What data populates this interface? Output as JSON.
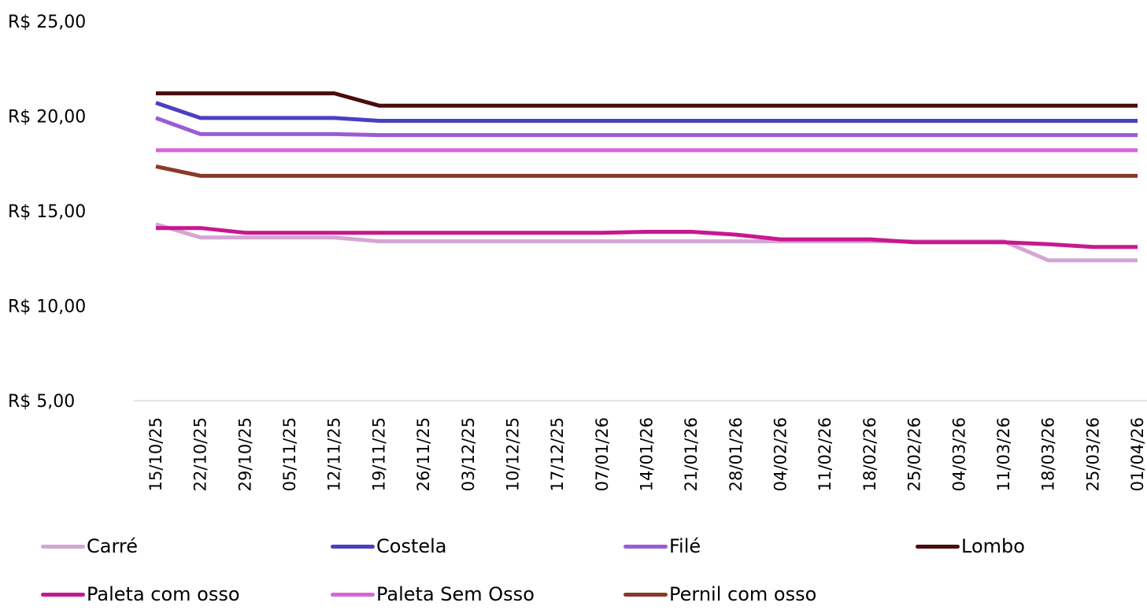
{
  "chart_data": {
    "type": "line",
    "title": "",
    "xlabel": "",
    "ylabel": "",
    "ylim": [
      5,
      25
    ],
    "grid": false,
    "legend_position": "bottom",
    "y_tick_labels": [
      "R$ 25,00",
      "R$ 20,00",
      "R$ 15,00",
      "R$ 10,00",
      "R$ 5,00"
    ],
    "y_tick_values": [
      25,
      20,
      15,
      10,
      5
    ],
    "x": [
      "15/10/25",
      "22/10/25",
      "29/10/25",
      "05/11/25",
      "12/11/25",
      "19/11/25",
      "26/11/25",
      "03/12/25",
      "10/12/25",
      "17/12/25",
      "07/01/26",
      "14/01/26",
      "21/01/26",
      "28/01/26",
      "04/02/26",
      "11/02/26",
      "18/02/26",
      "25/02/26",
      "04/03/26",
      "11/03/26",
      "18/03/26",
      "25/03/26",
      "01/04/26"
    ],
    "series": [
      {
        "name": "Carré",
        "color": "#d4a6d4",
        "values": [
          14.3,
          13.6,
          13.6,
          13.6,
          13.6,
          13.4,
          13.4,
          13.4,
          13.4,
          13.4,
          13.4,
          13.4,
          13.4,
          13.4,
          13.4,
          13.4,
          13.4,
          13.4,
          13.4,
          13.4,
          12.4,
          12.4,
          12.4
        ]
      },
      {
        "name": "Costela",
        "color": "#4b3fc4",
        "values": [
          20.7,
          19.9,
          19.9,
          19.9,
          19.9,
          19.75,
          19.75,
          19.75,
          19.75,
          19.75,
          19.75,
          19.75,
          19.75,
          19.75,
          19.75,
          19.75,
          19.75,
          19.75,
          19.75,
          19.75,
          19.75,
          19.75,
          19.75
        ]
      },
      {
        "name": "Filé",
        "color": "#9a5bd8",
        "values": [
          19.9,
          19.05,
          19.05,
          19.05,
          19.05,
          19.0,
          19.0,
          19.0,
          19.0,
          19.0,
          19.0,
          19.0,
          19.0,
          19.0,
          19.0,
          19.0,
          19.0,
          19.0,
          19.0,
          19.0,
          19.0,
          19.0,
          19.0
        ]
      },
      {
        "name": "Lombo",
        "color": "#4a0c0c",
        "values": [
          21.2,
          21.2,
          21.2,
          21.2,
          21.2,
          20.55,
          20.55,
          20.55,
          20.55,
          20.55,
          20.55,
          20.55,
          20.55,
          20.55,
          20.55,
          20.55,
          20.55,
          20.55,
          20.55,
          20.55,
          20.55,
          20.55,
          20.55
        ]
      },
      {
        "name": "Paleta com osso",
        "color": "#c8188f",
        "values": [
          14.1,
          14.1,
          13.85,
          13.85,
          13.85,
          13.85,
          13.85,
          13.85,
          13.85,
          13.85,
          13.85,
          13.9,
          13.9,
          13.75,
          13.5,
          13.5,
          13.5,
          13.35,
          13.35,
          13.35,
          13.25,
          13.1,
          13.1
        ]
      },
      {
        "name": "Paleta Sem Osso",
        "color": "#d766d7",
        "values": [
          18.2,
          18.2,
          18.2,
          18.2,
          18.2,
          18.2,
          18.2,
          18.2,
          18.2,
          18.2,
          18.2,
          18.2,
          18.2,
          18.2,
          18.2,
          18.2,
          18.2,
          18.2,
          18.2,
          18.2,
          18.2,
          18.2,
          18.2
        ]
      },
      {
        "name": "Pernil com osso",
        "color": "#8a3a2a",
        "values": [
          17.35,
          16.85,
          16.85,
          16.85,
          16.85,
          16.85,
          16.85,
          16.85,
          16.85,
          16.85,
          16.85,
          16.85,
          16.85,
          16.85,
          16.85,
          16.85,
          16.85,
          16.85,
          16.85,
          16.85,
          16.85,
          16.85,
          16.85
        ]
      }
    ]
  }
}
